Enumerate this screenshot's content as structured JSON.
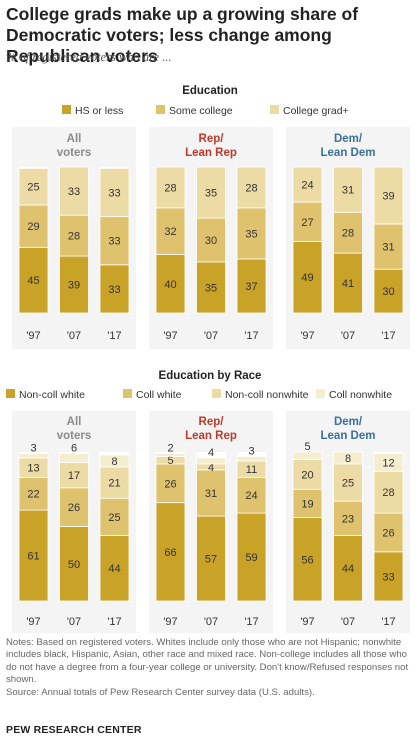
{
  "title": "College grads make up a growing share of Democratic voters; less change among Republican voters",
  "subtitle": "% of registered voters who are ...",
  "colors": {
    "dark": "#c9a228",
    "mid": "#dfc26e",
    "light": "#ecdba5",
    "lightest": "#f5edcf",
    "rep": "#c0392b",
    "dem": "#3a6f9e",
    "all": "#8a8a8a"
  },
  "chart_data": [
    {
      "type": "bar",
      "stacked": true,
      "title": "Education",
      "legend": [
        "HS or less",
        "Some college",
        "College grad+"
      ],
      "x": [
        "'97",
        "'07",
        "'17"
      ],
      "panels": [
        {
          "label_line1": "All",
          "label_line2": "voters",
          "series": [
            {
              "name": "HS or less",
              "values": [
                45,
                39,
                33
              ]
            },
            {
              "name": "Some college",
              "values": [
                29,
                28,
                33
              ]
            },
            {
              "name": "College grad+",
              "values": [
                25,
                33,
                33
              ]
            }
          ]
        },
        {
          "label_line1": "Rep/",
          "label_line2": "Lean Rep",
          "series": [
            {
              "name": "HS or less",
              "values": [
                40,
                35,
                37
              ]
            },
            {
              "name": "Some college",
              "values": [
                32,
                30,
                35
              ]
            },
            {
              "name": "College grad+",
              "values": [
                28,
                35,
                28
              ]
            }
          ]
        },
        {
          "label_line1": "Dem/",
          "label_line2": "Lean Dem",
          "series": [
            {
              "name": "HS or less",
              "values": [
                49,
                41,
                30
              ]
            },
            {
              "name": "Some college",
              "values": [
                27,
                28,
                31
              ]
            },
            {
              "name": "College grad+",
              "values": [
                24,
                31,
                39
              ]
            }
          ]
        }
      ]
    },
    {
      "type": "bar",
      "stacked": true,
      "title": "Education by Race",
      "legend": [
        "Non-coll white",
        "Coll white",
        "Non-coll nonwhite",
        "Coll nonwhite"
      ],
      "x": [
        "'97",
        "'07",
        "'17"
      ],
      "panels": [
        {
          "label_line1": "All",
          "label_line2": "voters",
          "series": [
            {
              "name": "Non-coll white",
              "values": [
                61,
                50,
                44
              ]
            },
            {
              "name": "Coll white",
              "values": [
                22,
                26,
                25
              ]
            },
            {
              "name": "Non-coll nonwhite",
              "values": [
                13,
                17,
                21
              ]
            },
            {
              "name": "Coll nonwhite",
              "values": [
                3,
                6,
                8
              ]
            }
          ]
        },
        {
          "label_line1": "Rep/",
          "label_line2": "Lean Rep",
          "series": [
            {
              "name": "Non-coll white",
              "values": [
                66,
                57,
                59
              ]
            },
            {
              "name": "Coll white",
              "values": [
                26,
                31,
                24
              ]
            },
            {
              "name": "Non-coll nonwhite",
              "values": [
                5,
                4,
                11
              ]
            },
            {
              "name": "Coll nonwhite",
              "values": [
                2,
                4,
                3
              ]
            }
          ]
        },
        {
          "label_line1": "Dem/",
          "label_line2": "Lean Dem",
          "series": [
            {
              "name": "Non-coll white",
              "values": [
                56,
                44,
                33
              ]
            },
            {
              "name": "Coll white",
              "values": [
                19,
                23,
                26
              ]
            },
            {
              "name": "Non-coll nonwhite",
              "values": [
                20,
                25,
                28
              ]
            },
            {
              "name": "Coll nonwhite",
              "values": [
                5,
                8,
                12
              ]
            }
          ]
        }
      ]
    }
  ],
  "notes": {
    "line1": "Notes: Based on registered voters. Whites include only those who are not Hispanic; nonwhite includes black, Hispanic, Asian, other race and mixed race. Non-college includes all those who do not have a degree from a four-year college or university. Don't know/Refused responses not shown.",
    "line2": "Source: Annual totals of Pew Research Center survey data (U.S. adults)."
  },
  "footer": "PEW RESEARCH CENTER"
}
